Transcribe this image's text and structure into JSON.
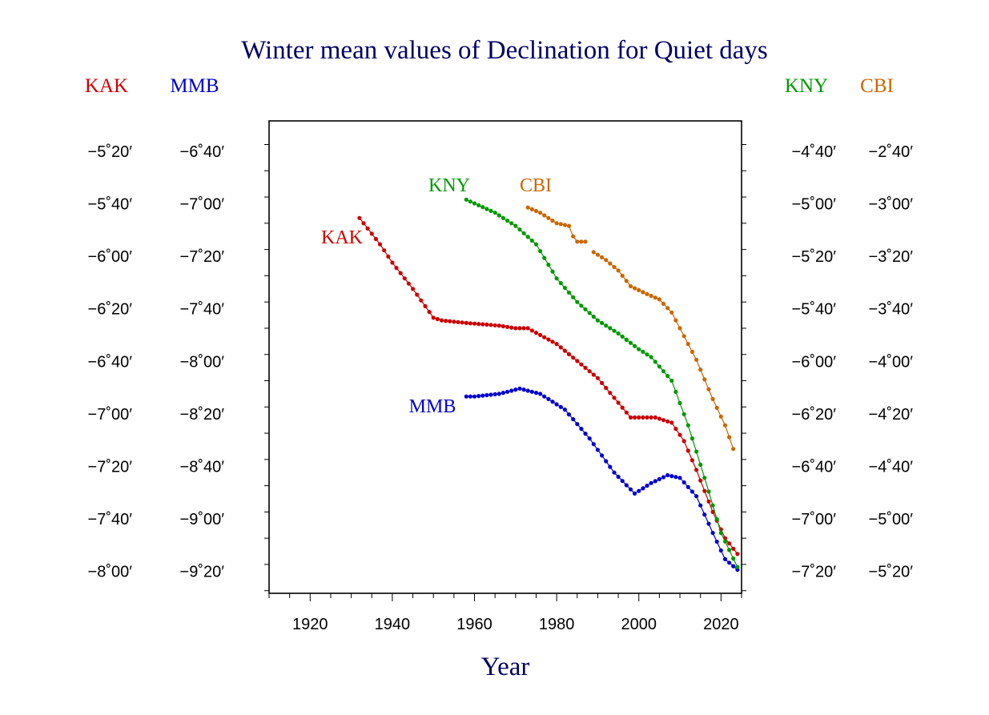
{
  "chart_data": {
    "type": "line",
    "title": "Winter mean values of Declination for Quiet days",
    "xlabel": "Year",
    "xlim": [
      1910,
      2025
    ],
    "x_ticks": [
      1920,
      1940,
      1960,
      1980,
      2000,
      2020
    ],
    "grid": false,
    "axis_headers": {
      "left_outer": "KAK",
      "left_inner": "MMB",
      "right_inner": "KNY",
      "right_outer": "CBI"
    },
    "kak_axis": {
      "ylim_minutes": [
        -489,
        -309
      ],
      "tick_labels": [
        "−5˚20′",
        "−5˚40′",
        "−6˚00′",
        "−6˚20′",
        "−6˚40′",
        "−7˚00′",
        "−7˚20′",
        "−7˚40′",
        "−8˚00′"
      ]
    },
    "mmb_axis": {
      "ylim_minutes": [
        -569,
        -389
      ],
      "tick_labels": [
        "−6˚40′",
        "−7˚00′",
        "−7˚20′",
        "−7˚40′",
        "−8˚00′",
        "−8˚20′",
        "−8˚40′",
        "−9˚00′",
        "−9˚20′"
      ]
    },
    "kny_axis": {
      "ylim_minutes": [
        -449,
        -269
      ],
      "tick_labels": [
        "−4˚40′",
        "−5˚00′",
        "−5˚20′",
        "−5˚40′",
        "−6˚00′",
        "−6˚20′",
        "−6˚40′",
        "−7˚00′",
        "−7˚20′"
      ]
    },
    "cbi_axis": {
      "ylim_minutes": [
        -329,
        -149
      ],
      "tick_labels": [
        "−2˚40′",
        "−3˚00′",
        "−3˚20′",
        "−3˚40′",
        "−4˚00′",
        "−4˚20′",
        "−4˚40′",
        "−5˚00′",
        "−5˚20′"
      ]
    },
    "series": [
      {
        "name": "KAK",
        "axis": "kak_axis",
        "color": "#cc0000",
        "points": [
          [
            1932,
            -346
          ],
          [
            1937,
            -356
          ],
          [
            1940,
            -363
          ],
          [
            1945,
            -373
          ],
          [
            1950,
            -384
          ],
          [
            1952,
            -385
          ],
          [
            1958,
            -386
          ],
          [
            1966,
            -387
          ],
          [
            1970,
            -388
          ],
          [
            1973,
            -388
          ],
          [
            1980,
            -394
          ],
          [
            1990,
            -407
          ],
          [
            1998,
            -422
          ],
          [
            2000,
            -422
          ],
          [
            2004,
            -422
          ],
          [
            2008,
            -424
          ],
          [
            2011,
            -431
          ],
          [
            2014,
            -442
          ],
          [
            2018,
            -458
          ],
          [
            2021,
            -468
          ],
          [
            2024,
            -474
          ]
        ]
      },
      {
        "name": "MMB",
        "axis": "mmb_axis",
        "color": "#0000cc",
        "points": [
          [
            1958,
            -494
          ],
          [
            1960,
            -494
          ],
          [
            1966,
            -493
          ],
          [
            1971,
            -491
          ],
          [
            1976,
            -493
          ],
          [
            1982,
            -499
          ],
          [
            1988,
            -510
          ],
          [
            1994,
            -523
          ],
          [
            1999,
            -531
          ],
          [
            2003,
            -527
          ],
          [
            2007,
            -524
          ],
          [
            2010,
            -525
          ],
          [
            2014,
            -532
          ],
          [
            2018,
            -546
          ],
          [
            2021,
            -556
          ],
          [
            2024,
            -560
          ]
        ]
      },
      {
        "name": "KNY",
        "axis": "kny_axis",
        "color": "#009900",
        "points": [
          [
            1958,
            -299
          ],
          [
            1965,
            -304
          ],
          [
            1970,
            -309
          ],
          [
            1975,
            -316
          ],
          [
            1980,
            -329
          ],
          [
            1985,
            -338
          ],
          [
            1990,
            -345
          ],
          [
            1995,
            -350
          ],
          [
            2000,
            -356
          ],
          [
            2003,
            -359
          ],
          [
            2008,
            -368
          ],
          [
            2012,
            -385
          ],
          [
            2016,
            -405
          ],
          [
            2020,
            -426
          ],
          [
            2024,
            -439
          ]
        ]
      },
      {
        "name": "CBI",
        "axis": "cbi_axis",
        "color": "#cc6600",
        "segments": [
          [
            [
              1973,
              -182
            ],
            [
              1976,
              -184
            ],
            [
              1980,
              -188
            ],
            [
              1983,
              -189
            ],
            [
              1984,
              -193
            ],
            [
              1985,
              -195
            ],
            [
              1987,
              -195
            ]
          ],
          [
            [
              1989,
              -199
            ],
            [
              1992,
              -202
            ],
            [
              1995,
              -206
            ],
            [
              1998,
              -212
            ],
            [
              2002,
              -215
            ],
            [
              2005,
              -217
            ],
            [
              2008,
              -222
            ],
            [
              2010,
              -228
            ],
            [
              2014,
              -240
            ],
            [
              2018,
              -255
            ],
            [
              2021,
              -265
            ],
            [
              2023,
              -274
            ]
          ]
        ]
      }
    ]
  },
  "labels": {
    "title": "Winter mean values of Declination for Quiet days",
    "xlabel": "Year",
    "header_kak": "KAK",
    "header_mmb": "MMB",
    "header_kny": "KNY",
    "header_cbi": "CBI",
    "inline_kak": "KAK",
    "inline_mmb": "MMB",
    "inline_kny": "KNY",
    "inline_cbi": "CBI"
  },
  "colors": {
    "title": "#000066",
    "kak": "#cc0000",
    "mmb": "#0000cc",
    "kny": "#009900",
    "cbi": "#cc6600"
  }
}
